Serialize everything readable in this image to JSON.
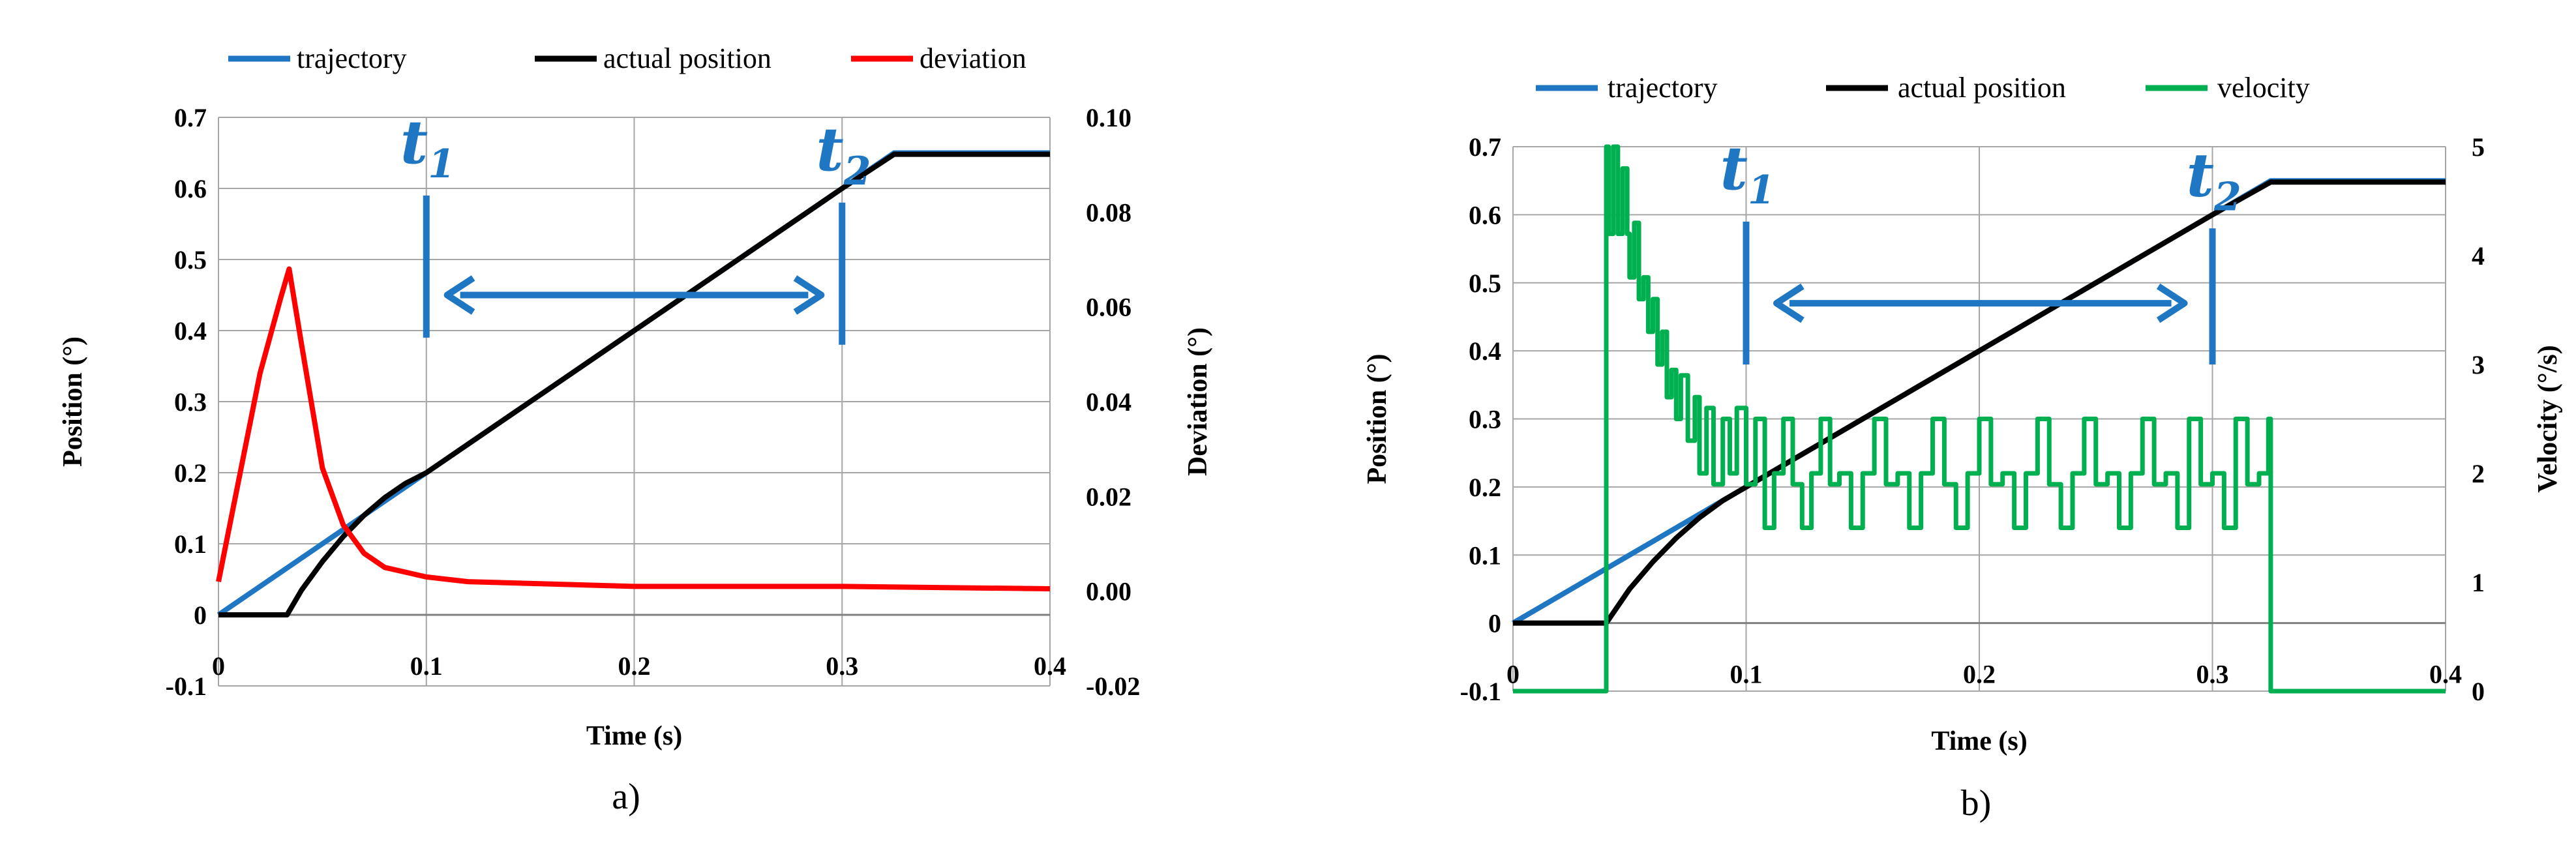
{
  "chart_data": [
    {
      "type": "line",
      "panel_label": "a)",
      "xlabel": "Time (s)",
      "ylabel": "Position (°)",
      "y2label": "Deviation (°)",
      "xlim": [
        0,
        0.4
      ],
      "ylim": [
        -0.1,
        0.7
      ],
      "y2lim": [
        -0.02,
        0.1
      ],
      "x_ticks": [
        "0",
        "0.1",
        "0.2",
        "0.3",
        "0.4"
      ],
      "y_ticks": [
        "-0.1",
        "0",
        "0.1",
        "0.2",
        "0.3",
        "0.4",
        "0.5",
        "0.6",
        "0.7"
      ],
      "y2_ticks": [
        "-0.02",
        "0.00",
        "0.02",
        "0.04",
        "0.06",
        "0.08",
        "0.10"
      ],
      "grid": true,
      "legend_position": "top",
      "markers": {
        "t1": {
          "x": 0.1,
          "label": "t",
          "sub": "1",
          "y_from": 0.39,
          "y_to": 0.59
        },
        "t2": {
          "x": 0.3,
          "label": "t",
          "sub": "2",
          "y_from": 0.38,
          "y_to": 0.58
        },
        "arrow": {
          "x_from": 0.11,
          "x_to": 0.29,
          "y": 0.45
        },
        "color": "#1f77c4"
      },
      "series": [
        {
          "name": "trajectory",
          "axis": "left",
          "color": "#1f77c4",
          "x": [
            0,
            0.05,
            0.1,
            0.15,
            0.2,
            0.25,
            0.3,
            0.325,
            0.4
          ],
          "y": [
            0,
            0.1,
            0.2,
            0.3,
            0.4,
            0.5,
            0.6,
            0.65,
            0.65
          ]
        },
        {
          "name": "actual position",
          "axis": "left",
          "color": "#000000",
          "x": [
            0,
            0.033,
            0.04,
            0.05,
            0.06,
            0.07,
            0.08,
            0.09,
            0.1,
            0.15,
            0.2,
            0.25,
            0.3,
            0.325,
            0.4
          ],
          "y": [
            0,
            0,
            0.035,
            0.075,
            0.11,
            0.14,
            0.165,
            0.185,
            0.2,
            0.3,
            0.4,
            0.5,
            0.6,
            0.648,
            0.648
          ]
        },
        {
          "name": "deviation",
          "axis": "right",
          "color": "#ff0000",
          "x": [
            0,
            0.01,
            0.02,
            0.03,
            0.034,
            0.04,
            0.05,
            0.06,
            0.07,
            0.08,
            0.1,
            0.12,
            0.2,
            0.3,
            0.4
          ],
          "y": [
            0.002,
            0.024,
            0.046,
            0.062,
            0.068,
            0.052,
            0.026,
            0.014,
            0.008,
            0.005,
            0.003,
            0.002,
            0.001,
            0.001,
            0.0005
          ]
        }
      ]
    },
    {
      "type": "line",
      "panel_label": "b)",
      "xlabel": "Time (s)",
      "ylabel": "Position (°)",
      "y2label": "Velocity (°/s)",
      "xlim": [
        0,
        0.4
      ],
      "ylim": [
        -0.1,
        0.7
      ],
      "y2lim": [
        0,
        5
      ],
      "x_ticks": [
        "0",
        "0.1",
        "0.2",
        "0.3",
        "0.4"
      ],
      "y_ticks": [
        "-0.1",
        "0",
        "0.1",
        "0.2",
        "0.3",
        "0.4",
        "0.5",
        "0.6",
        "0.7"
      ],
      "y2_ticks": [
        "0",
        "1",
        "2",
        "3",
        "4",
        "5"
      ],
      "grid": true,
      "legend_position": "top",
      "markers": {
        "t1": {
          "x": 0.1,
          "label": "t",
          "sub": "1",
          "y_from": 0.38,
          "y_to": 0.59
        },
        "t2": {
          "x": 0.3,
          "label": "t",
          "sub": "2",
          "y_from": 0.38,
          "y_to": 0.58
        },
        "arrow": {
          "x_from": 0.113,
          "x_to": 0.288,
          "y": 0.47
        },
        "color": "#1f77c4"
      },
      "series": [
        {
          "name": "trajectory",
          "axis": "left",
          "color": "#1f77c4",
          "x": [
            0,
            0.05,
            0.1,
            0.15,
            0.2,
            0.25,
            0.3,
            0.325,
            0.4
          ],
          "y": [
            0,
            0.1,
            0.2,
            0.3,
            0.4,
            0.5,
            0.6,
            0.65,
            0.65
          ]
        },
        {
          "name": "actual position",
          "axis": "left",
          "color": "#000000",
          "x": [
            0,
            0.04,
            0.05,
            0.06,
            0.07,
            0.08,
            0.09,
            0.1,
            0.15,
            0.2,
            0.25,
            0.3,
            0.325,
            0.4
          ],
          "y": [
            0,
            0,
            0.05,
            0.09,
            0.125,
            0.155,
            0.18,
            0.2,
            0.3,
            0.4,
            0.5,
            0.6,
            0.648,
            0.648
          ]
        },
        {
          "name": "velocity",
          "axis": "right",
          "color": "#00b050",
          "x": [
            0,
            0.039,
            0.04,
            0.041,
            0.043,
            0.045,
            0.047,
            0.049,
            0.05,
            0.052,
            0.054,
            0.056,
            0.058,
            0.06,
            0.062,
            0.064,
            0.066,
            0.068,
            0.07,
            0.072,
            0.075,
            0.078,
            0.08,
            0.083,
            0.086,
            0.09,
            0.093,
            0.096,
            0.1,
            0.104,
            0.108,
            0.112,
            0.116,
            0.12,
            0.124,
            0.128,
            0.132,
            0.136,
            0.14,
            0.145,
            0.15,
            0.155,
            0.16,
            0.165,
            0.17,
            0.175,
            0.18,
            0.185,
            0.19,
            0.195,
            0.2,
            0.205,
            0.21,
            0.215,
            0.22,
            0.225,
            0.23,
            0.235,
            0.24,
            0.245,
            0.25,
            0.255,
            0.26,
            0.265,
            0.27,
            0.275,
            0.28,
            0.285,
            0.29,
            0.295,
            0.3,
            0.305,
            0.31,
            0.315,
            0.32,
            0.324,
            0.325,
            0.4
          ],
          "y": [
            0,
            0,
            5,
            4.2,
            5,
            4.2,
            4.8,
            4.2,
            3.8,
            4.3,
            3.6,
            3.8,
            3.3,
            3.6,
            3.0,
            3.3,
            2.7,
            2.95,
            2.5,
            2.9,
            2.3,
            2.7,
            2.0,
            2.6,
            1.9,
            2.5,
            2.0,
            2.6,
            1.9,
            2.5,
            1.5,
            2.0,
            2.5,
            1.9,
            1.5,
            2.0,
            2.5,
            1.9,
            2.0,
            1.5,
            2.0,
            2.5,
            1.9,
            2.0,
            1.5,
            2.0,
            2.5,
            1.9,
            1.5,
            2.0,
            2.5,
            1.9,
            2.0,
            1.5,
            2.0,
            2.5,
            1.9,
            1.5,
            2.0,
            2.5,
            1.9,
            2.0,
            1.5,
            2.0,
            2.5,
            1.9,
            2.0,
            1.5,
            2.5,
            1.9,
            2.0,
            1.5,
            2.5,
            1.9,
            2.0,
            2.5,
            0,
            0
          ]
        }
      ]
    }
  ]
}
